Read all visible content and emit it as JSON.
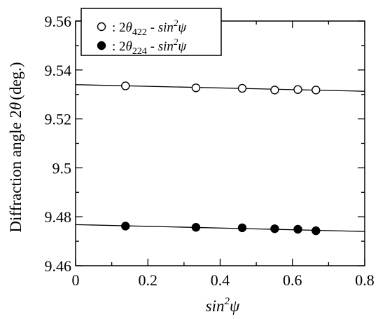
{
  "chart_data": {
    "type": "scatter",
    "xlabel": {
      "base": "sin",
      "sup": "2",
      "tail": "ψ"
    },
    "ylabel": {
      "main": "Diffraction angle 2",
      "symbol": "θ",
      "unit": "(deg.)"
    },
    "xlim": [
      0,
      0.8
    ],
    "ylim": [
      9.46,
      9.56
    ],
    "x_ticks": [
      0,
      0.2,
      0.4,
      0.6,
      0.8
    ],
    "x_tick_labels": [
      "0",
      "0.2",
      "0.4",
      "0.6",
      "0.8"
    ],
    "y_ticks": [
      9.46,
      9.48,
      9.5,
      9.52,
      9.54,
      9.56
    ],
    "y_tick_labels": [
      "9.46",
      "9.48",
      "9.5",
      "9.52",
      "9.54",
      "9.56"
    ],
    "grid": false,
    "legend_position": "top-left",
    "series": [
      {
        "name": "2θ422 - sin2ψ",
        "legend": {
          "prefix": ": 2",
          "theta": "θ",
          "sub": "422",
          "mid": " - sin",
          "sup": "2",
          "psi": "ψ"
        },
        "marker": "open-circle",
        "x": [
          0.138,
          0.333,
          0.461,
          0.551,
          0.615,
          0.665
        ],
        "y": [
          9.5335,
          9.5327,
          9.5325,
          9.5318,
          9.532,
          9.5318
        ],
        "fit": {
          "x": [
            0,
            0.8
          ],
          "y": [
            9.534,
            9.5313
          ]
        }
      },
      {
        "name": "2θ224 - sin2ψ",
        "legend": {
          "prefix": ": 2",
          "theta": "θ",
          "sub": "224",
          "mid": " - sin",
          "sup": "2",
          "psi": "ψ"
        },
        "marker": "filled-circle",
        "x": [
          0.138,
          0.333,
          0.461,
          0.551,
          0.615,
          0.665
        ],
        "y": [
          9.4762,
          9.4757,
          9.4755,
          9.4751,
          9.4749,
          9.4743
        ],
        "fit": {
          "x": [
            0,
            0.8
          ],
          "y": [
            9.4768,
            9.474
          ]
        }
      }
    ]
  }
}
